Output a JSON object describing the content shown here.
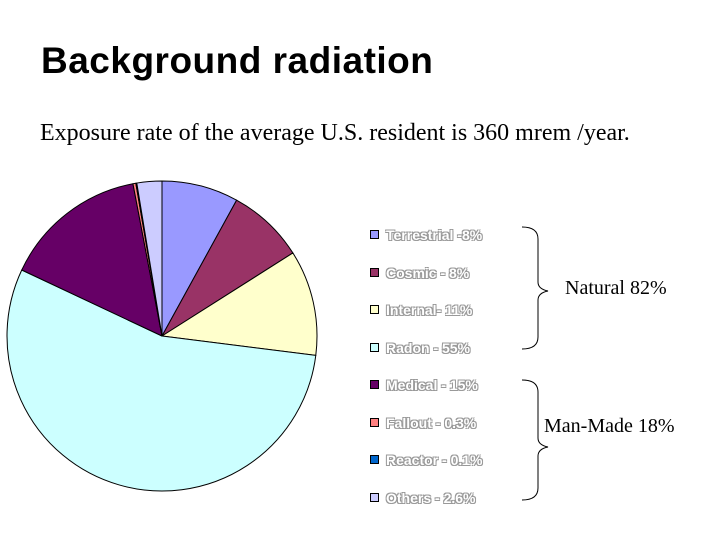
{
  "header": {
    "title": "Background radiation",
    "subtitle": "Exposure rate of  the average U.S. resident is 360 mrem /year."
  },
  "chart_data": {
    "type": "pie",
    "slices": [
      {
        "label": "Terrestrial -8%",
        "value": 8,
        "color": "#9999ff"
      },
      {
        "label": "Cosmic - 8%",
        "value": 8,
        "color": "#993366"
      },
      {
        "label": "Internal- 11%",
        "value": 11,
        "color": "#ffffcc"
      },
      {
        "label": "Radon - 55%",
        "value": 55,
        "color": "#ccffff"
      },
      {
        "label": "Medical - 15%",
        "value": 15,
        "color": "#660066"
      },
      {
        "label": "Fallout - 0.3%",
        "value": 0.3,
        "color": "#ff8080"
      },
      {
        "label": "Reactor - 0.1%",
        "value": 0.1,
        "color": "#0066cc"
      },
      {
        "label": "Others - 2.6%",
        "value": 2.6,
        "color": "#ccccff"
      }
    ],
    "legend_position": "right",
    "groups": [
      {
        "label": "Natural 82%"
      },
      {
        "label": "Man-Made 18%"
      }
    ]
  }
}
